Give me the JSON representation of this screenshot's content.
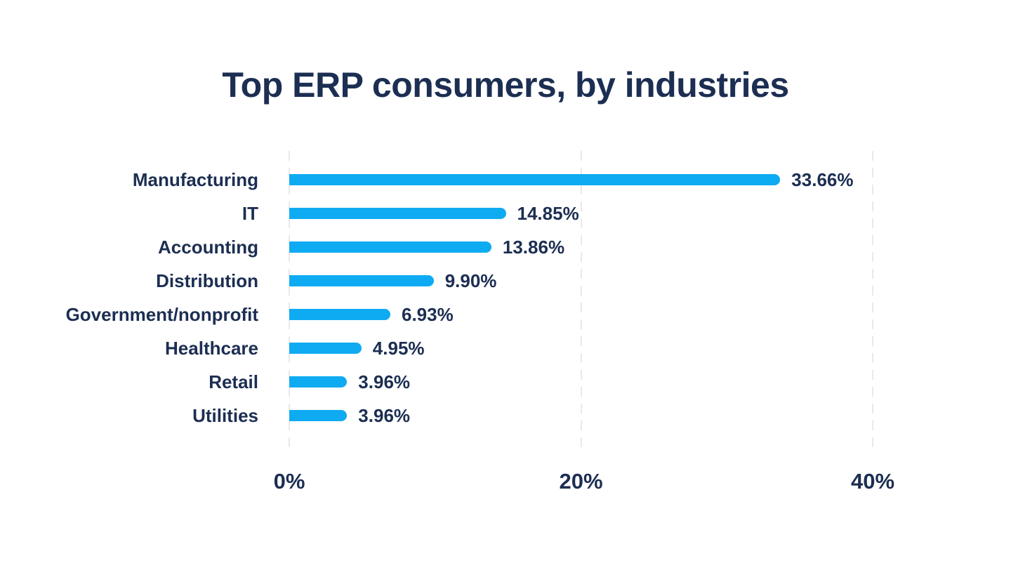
{
  "title": "Top ERP consumers, by industries",
  "chart_data": {
    "type": "bar",
    "orientation": "horizontal",
    "title": "Top ERP consumers, by industries",
    "categories": [
      "Manufacturing",
      "IT",
      "Accounting",
      "Distribution",
      "Government/nonprofit",
      "Healthcare",
      "Retail",
      "Utilities"
    ],
    "values": [
      33.66,
      14.85,
      13.86,
      9.9,
      6.93,
      4.95,
      3.96,
      3.96
    ],
    "value_labels": [
      "33.66%",
      "14.85%",
      "13.86%",
      "9.90%",
      "6.93%",
      "4.95%",
      "3.96%",
      "3.96%"
    ],
    "xlabel": "",
    "ylabel": "",
    "xlim": [
      0,
      40
    ],
    "x_ticks": [
      "0%",
      "20%",
      "40%"
    ],
    "x_tick_values": [
      0,
      20,
      40
    ],
    "grid": "vertical-dashed",
    "legend": "none",
    "colors": {
      "bar": "#0FABF2",
      "text": "#1C2E52",
      "gridline": "#E9E9E9",
      "background": "#FFFFFF"
    }
  }
}
